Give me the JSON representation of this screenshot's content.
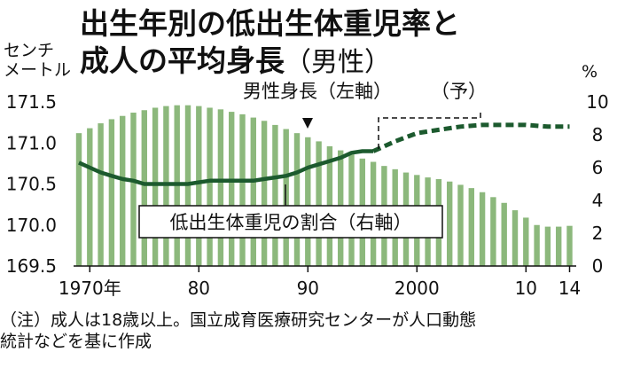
{
  "title_line1": "出生年別の低出生体重児率と",
  "title_line2_main": "成人の平均身長",
  "title_line2_paren": "（男性）",
  "unit_left_line1": "センチ",
  "unit_left_line2": "メートル",
  "unit_right": "%",
  "note_line1": "（注）成人は18歳以上。国立成育医療研究センターが人口動態",
  "note_line2": "統計などを基に作成",
  "chart_data": {
    "type": "bar+line",
    "title": "出生年別の低出生体重児率と成人の平均身長（男性）",
    "left_axis": {
      "label": "センチメートル",
      "ylim": [
        169.5,
        171.5
      ],
      "ticks": [
        "171.5",
        "171.0",
        "170.5",
        "170.0",
        "169.5"
      ],
      "tick_values": [
        171.5,
        171.0,
        170.5,
        170.0,
        169.5
      ]
    },
    "right_axis": {
      "label": "%",
      "ylim": [
        0,
        10
      ],
      "ticks": [
        "10",
        "8",
        "6",
        "4",
        "2",
        "0"
      ],
      "tick_values": [
        10,
        8,
        6,
        4,
        2,
        0
      ]
    },
    "x_ticks": [
      {
        "year": 1970,
        "label": "1970年"
      },
      {
        "year": 1980,
        "label": "80"
      },
      {
        "year": 1990,
        "label": "90"
      },
      {
        "year": 2000,
        "label": "2000"
      },
      {
        "year": 2010,
        "label": "10"
      },
      {
        "year": 2014,
        "label": "14"
      }
    ],
    "series": [
      {
        "name": "男性身長（左軸）",
        "type": "bar",
        "axis": "left",
        "color": "#8cb87c",
        "x": [
          1969,
          1970,
          1971,
          1972,
          1973,
          1974,
          1975,
          1976,
          1977,
          1978,
          1979,
          1980,
          1981,
          1982,
          1983,
          1984,
          1985,
          1986,
          1987,
          1988,
          1989,
          1990,
          1991,
          1992,
          1993,
          1994,
          1995,
          1996,
          1997,
          1998,
          1999,
          2000,
          2001,
          2002,
          2003,
          2004,
          2005,
          2006,
          2007,
          2008,
          2009,
          2010,
          2011,
          2012,
          2013,
          2014
        ],
        "values": [
          171.12,
          171.18,
          171.24,
          171.29,
          171.33,
          171.37,
          171.4,
          171.43,
          171.45,
          171.46,
          171.46,
          171.45,
          171.43,
          171.41,
          171.38,
          171.35,
          171.31,
          171.27,
          171.22,
          171.17,
          171.12,
          171.07,
          171.02,
          170.96,
          170.91,
          170.86,
          170.81,
          170.77,
          170.72,
          170.68,
          170.64,
          170.61,
          170.58,
          170.56,
          170.53,
          170.49,
          170.45,
          170.4,
          170.34,
          170.27,
          170.18,
          170.09,
          170.0,
          169.98,
          169.98,
          169.99
        ]
      },
      {
        "name": "低出生体重児の割合（右軸）",
        "type": "line",
        "axis": "right",
        "color": "#1c5a2e",
        "x": [
          1969,
          1970,
          1971,
          1972,
          1973,
          1974,
          1975,
          1976,
          1977,
          1978,
          1979,
          1980,
          1981,
          1982,
          1983,
          1984,
          1985,
          1986,
          1987,
          1988,
          1989,
          1990,
          1991,
          1992,
          1993,
          1994,
          1995,
          1996
        ],
        "values": [
          6.3,
          6.0,
          5.7,
          5.5,
          5.3,
          5.2,
          5.0,
          5.0,
          5.0,
          5.0,
          5.0,
          5.1,
          5.2,
          5.2,
          5.2,
          5.2,
          5.2,
          5.3,
          5.4,
          5.5,
          5.7,
          6.0,
          6.2,
          6.4,
          6.6,
          6.9,
          7.0,
          7.0
        ]
      },
      {
        "name": "男性身長（予）",
        "type": "line",
        "style": "dashed",
        "axis": "right",
        "color": "#1c5a2e",
        "x": [
          1996,
          1998,
          2000,
          2002,
          2004,
          2006,
          2008,
          2010,
          2012,
          2014
        ],
        "values": [
          7.0,
          7.6,
          8.1,
          8.3,
          8.5,
          8.6,
          8.6,
          8.6,
          8.5,
          8.5
        ]
      }
    ],
    "annotations": {
      "height_label": "男性身長（左軸）",
      "forecast_label": "（予）",
      "ratio_label": "低出生体重児の割合（右軸）"
    }
  }
}
